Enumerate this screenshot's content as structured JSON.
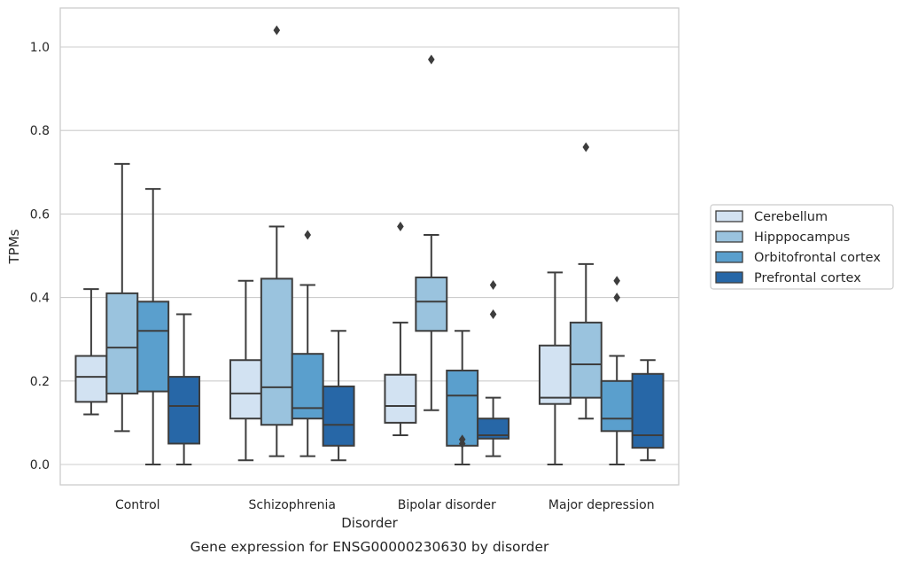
{
  "chart_data": {
    "type": "box",
    "caption": "Gene expression for ENSG00000230630 by disorder",
    "xlabel": "Disorder",
    "ylabel": "TPMs",
    "ylim": [
      -0.05,
      1.09
    ],
    "yticks": [
      0.0,
      0.2,
      0.4,
      0.6,
      0.8,
      1.0
    ],
    "ytick_labels": [
      "0.0",
      "0.2",
      "0.4",
      "0.6",
      "0.8",
      "1.0"
    ],
    "grid": "horizontal",
    "legend_position": "right",
    "categories": [
      "Control",
      "Schizophrenia",
      "Bipolar disorder",
      "Major depression"
    ],
    "series": [
      {
        "name": "Cerebellum",
        "color": "#d2e2f2",
        "boxes": [
          {
            "whislo": 0.12,
            "q1": 0.15,
            "med": 0.21,
            "q3": 0.26,
            "whishi": 0.42,
            "fliers": []
          },
          {
            "whislo": 0.01,
            "q1": 0.11,
            "med": 0.17,
            "q3": 0.25,
            "whishi": 0.44,
            "fliers": []
          },
          {
            "whislo": 0.07,
            "q1": 0.1,
            "med": 0.14,
            "q3": 0.215,
            "whishi": 0.34,
            "fliers": [
              0.57
            ]
          },
          {
            "whislo": 0.0,
            "q1": 0.145,
            "med": 0.16,
            "q3": 0.285,
            "whishi": 0.46,
            "fliers": []
          }
        ]
      },
      {
        "name": "Hipppocampus",
        "color": "#9ac3de",
        "boxes": [
          {
            "whislo": 0.08,
            "q1": 0.17,
            "med": 0.28,
            "q3": 0.41,
            "whishi": 0.72,
            "fliers": []
          },
          {
            "whislo": 0.02,
            "q1": 0.095,
            "med": 0.185,
            "q3": 0.445,
            "whishi": 0.57,
            "fliers": [
              1.04
            ]
          },
          {
            "whislo": 0.13,
            "q1": 0.32,
            "med": 0.39,
            "q3": 0.448,
            "whishi": 0.55,
            "fliers": [
              0.97
            ]
          },
          {
            "whislo": 0.11,
            "q1": 0.16,
            "med": 0.24,
            "q3": 0.34,
            "whishi": 0.48,
            "fliers": [
              0.76
            ]
          }
        ]
      },
      {
        "name": "Orbitofrontal cortex",
        "color": "#5a9fcd",
        "boxes": [
          {
            "whislo": 0.0,
            "q1": 0.175,
            "med": 0.32,
            "q3": 0.39,
            "whishi": 0.66,
            "fliers": []
          },
          {
            "whislo": 0.02,
            "q1": 0.11,
            "med": 0.135,
            "q3": 0.265,
            "whishi": 0.43,
            "fliers": [
              0.55
            ]
          },
          {
            "whislo": 0.0,
            "q1": 0.045,
            "med": 0.165,
            "q3": 0.225,
            "whishi": 0.32,
            "fliers": [
              0.05,
              0.06
            ]
          },
          {
            "whislo": 0.0,
            "q1": 0.08,
            "med": 0.11,
            "q3": 0.2,
            "whishi": 0.26,
            "fliers": [
              0.4,
              0.44
            ]
          }
        ]
      },
      {
        "name": "Prefrontal cortex",
        "color": "#2767a7",
        "boxes": [
          {
            "whislo": 0.0,
            "q1": 0.05,
            "med": 0.14,
            "q3": 0.21,
            "whishi": 0.36,
            "fliers": []
          },
          {
            "whislo": 0.01,
            "q1": 0.045,
            "med": 0.095,
            "q3": 0.187,
            "whishi": 0.32,
            "fliers": []
          },
          {
            "whislo": 0.02,
            "q1": 0.062,
            "med": 0.07,
            "q3": 0.11,
            "whishi": 0.16,
            "fliers": [
              0.36,
              0.43
            ]
          },
          {
            "whislo": 0.01,
            "q1": 0.04,
            "med": 0.07,
            "q3": 0.217,
            "whishi": 0.25,
            "fliers": []
          }
        ]
      }
    ]
  }
}
